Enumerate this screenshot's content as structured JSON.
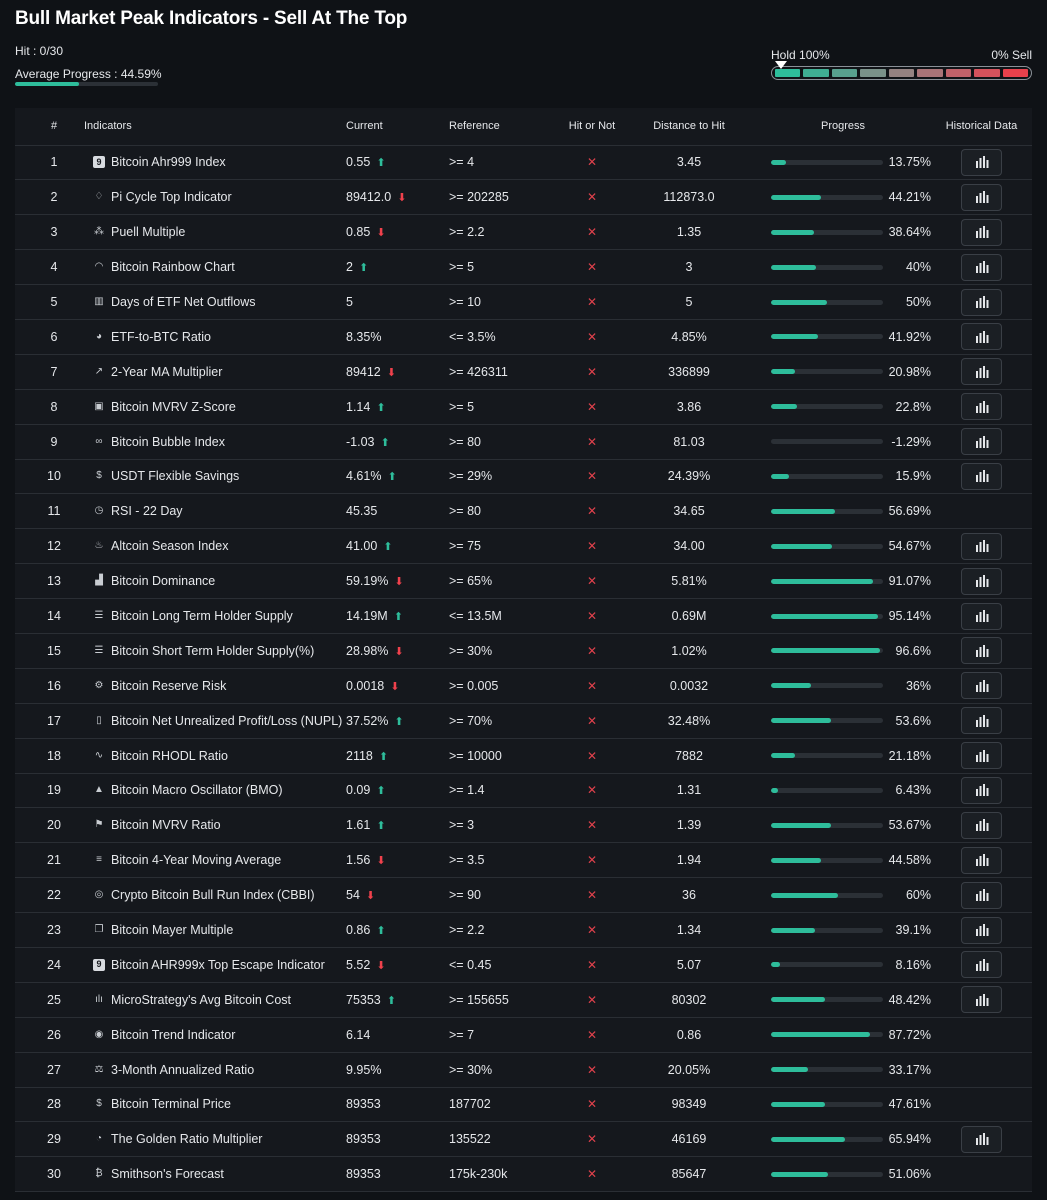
{
  "header": {
    "title": "Bull Market Peak Indicators - Sell At The Top",
    "hit": "Hit : 0/30",
    "average_progress_label": "Average Progress : 44.59%",
    "average_progress": 44.59
  },
  "meter": {
    "hold_label": "Hold 100%",
    "sell_label": "0% Sell",
    "segments": [
      "#2ebd9b",
      "#3fae93",
      "#58a08e",
      "#7a9189",
      "#948281",
      "#a97478",
      "#c0626a",
      "#d4525c",
      "#e8414c"
    ]
  },
  "table": {
    "columns": [
      "#",
      "Indicators",
      "Current",
      "Reference",
      "Hit or Not",
      "Distance to Hit",
      "Progress",
      "Historical Data"
    ],
    "rows": [
      {
        "n": "1",
        "icon": "9",
        "icon_name": "ahr999-icon",
        "name": "Bitcoin Ahr999 Index",
        "current": "0.55",
        "trend": "up",
        "ref": ">= 4",
        "dist": "3.45",
        "pct": "13.75%",
        "p": 13.75,
        "hist": true
      },
      {
        "n": "2",
        "icon": "♢",
        "icon_name": "pi-cycle-icon",
        "name": "Pi Cycle Top Indicator",
        "current": "89412.0",
        "trend": "down",
        "ref": ">= 202285",
        "dist": "112873.0",
        "pct": "44.21%",
        "p": 44.21,
        "hist": true
      },
      {
        "n": "3",
        "icon": "⁂",
        "icon_name": "puell-icon",
        "name": "Puell Multiple",
        "current": "0.85",
        "trend": "down",
        "ref": ">= 2.2",
        "dist": "1.35",
        "pct": "38.64%",
        "p": 38.64,
        "hist": true
      },
      {
        "n": "4",
        "icon": "◠",
        "icon_name": "rainbow-icon",
        "name": "Bitcoin Rainbow Chart",
        "current": "2",
        "trend": "up",
        "ref": ">= 5",
        "dist": "3",
        "pct": "40%",
        "p": 40,
        "hist": true
      },
      {
        "n": "5",
        "icon": "▥",
        "icon_name": "etf-outflow-icon",
        "name": "Days of ETF Net Outflows",
        "current": "5",
        "trend": "",
        "ref": ">= 10",
        "dist": "5",
        "pct": "50%",
        "p": 50,
        "hist": true
      },
      {
        "n": "6",
        "icon": "◕",
        "icon_name": "pie-icon",
        "name": "ETF-to-BTC Ratio",
        "current": "8.35%",
        "trend": "",
        "ref": "<= 3.5%",
        "dist": "4.85%",
        "pct": "41.92%",
        "p": 41.92,
        "hist": true
      },
      {
        "n": "7",
        "icon": "↗",
        "icon_name": "ma-multiplier-icon",
        "name": "2-Year MA Multiplier",
        "current": "89412",
        "trend": "down",
        "ref": ">= 426311",
        "dist": "336899",
        "pct": "20.98%",
        "p": 20.98,
        "hist": true
      },
      {
        "n": "8",
        "icon": "▣",
        "icon_name": "mvrv-zscore-icon",
        "name": "Bitcoin MVRV Z-Score",
        "current": "1.14",
        "trend": "up",
        "ref": ">= 5",
        "dist": "3.86",
        "pct": "22.8%",
        "p": 22.8,
        "hist": true
      },
      {
        "n": "9",
        "icon": "∞",
        "icon_name": "bubble-icon",
        "name": "Bitcoin Bubble Index",
        "current": "-1.03",
        "trend": "up",
        "ref": ">= 80",
        "dist": "81.03",
        "pct": "-1.29%",
        "p": 0,
        "hist": true
      },
      {
        "n": "10",
        "icon": "$",
        "icon_name": "dollar-icon",
        "name": "USDT Flexible Savings",
        "current": "4.61%",
        "trend": "up",
        "ref": ">= 29%",
        "dist": "24.39%",
        "pct": "15.9%",
        "p": 15.9,
        "hist": true
      },
      {
        "n": "11",
        "icon": "◷",
        "icon_name": "clock-icon",
        "name": "RSI - 22 Day",
        "current": "45.35",
        "trend": "",
        "ref": ">= 80",
        "dist": "34.65",
        "pct": "56.69%",
        "p": 56.69,
        "hist": false
      },
      {
        "n": "12",
        "icon": "♨",
        "icon_name": "flame-icon",
        "name": "Altcoin Season Index",
        "current": "41.00",
        "trend": "up",
        "ref": ">= 75",
        "dist": "34.00",
        "pct": "54.67%",
        "p": 54.67,
        "hist": true
      },
      {
        "n": "13",
        "icon": "▟",
        "icon_name": "dominance-icon",
        "name": "Bitcoin Dominance",
        "current": "59.19%",
        "trend": "down",
        "ref": ">= 65%",
        "dist": "5.81%",
        "pct": "91.07%",
        "p": 91.07,
        "hist": true
      },
      {
        "n": "14",
        "icon": "☰",
        "icon_name": "database-icon",
        "name": "Bitcoin Long Term Holder Supply",
        "current": "14.19M",
        "trend": "up",
        "ref": "<= 13.5M",
        "dist": "0.69M",
        "pct": "95.14%",
        "p": 95.14,
        "hist": true
      },
      {
        "n": "15",
        "icon": "☰",
        "icon_name": "database-icon",
        "name": "Bitcoin Short Term Holder Supply(%)",
        "current": "28.98%",
        "trend": "down",
        "ref": ">= 30%",
        "dist": "1.02%",
        "pct": "96.6%",
        "p": 96.6,
        "hist": true
      },
      {
        "n": "16",
        "icon": "⚙",
        "icon_name": "reserve-risk-icon",
        "name": "Bitcoin Reserve Risk",
        "current": "0.0018",
        "trend": "down",
        "ref": ">= 0.005",
        "dist": "0.0032",
        "pct": "36%",
        "p": 36,
        "hist": true
      },
      {
        "n": "17",
        "icon": "▯",
        "icon_name": "nupl-icon",
        "name": "Bitcoin Net Unrealized Profit/Loss (NUPL)",
        "current": "37.52%",
        "trend": "up",
        "ref": ">= 70%",
        "dist": "32.48%",
        "pct": "53.6%",
        "p": 53.6,
        "hist": true
      },
      {
        "n": "18",
        "icon": "∿",
        "icon_name": "pulse-icon",
        "name": "Bitcoin RHODL Ratio",
        "current": "2118",
        "trend": "up",
        "ref": ">= 10000",
        "dist": "7882",
        "pct": "21.18%",
        "p": 21.18,
        "hist": true
      },
      {
        "n": "19",
        "icon": "▲",
        "icon_name": "mountain-icon",
        "name": "Bitcoin Macro Oscillator (BMO)",
        "current": "0.09",
        "trend": "up",
        "ref": ">= 1.4",
        "dist": "1.31",
        "pct": "6.43%",
        "p": 6.43,
        "hist": true
      },
      {
        "n": "20",
        "icon": "⚑",
        "icon_name": "checkered-flag-icon",
        "name": "Bitcoin MVRV Ratio",
        "current": "1.61",
        "trend": "up",
        "ref": ">= 3",
        "dist": "1.39",
        "pct": "53.67%",
        "p": 53.67,
        "hist": true
      },
      {
        "n": "21",
        "icon": "≡",
        "icon_name": "moving-average-icon",
        "name": "Bitcoin 4-Year Moving Average",
        "current": "1.56",
        "trend": "down",
        "ref": ">= 3.5",
        "dist": "1.94",
        "pct": "44.58%",
        "p": 44.58,
        "hist": true
      },
      {
        "n": "22",
        "icon": "◎",
        "icon_name": "cbbi-icon",
        "name": "Crypto Bitcoin Bull Run Index (CBBI)",
        "current": "54",
        "trend": "down",
        "ref": ">= 90",
        "dist": "36",
        "pct": "60%",
        "p": 60,
        "hist": true
      },
      {
        "n": "23",
        "icon": "❐",
        "icon_name": "mayer-icon",
        "name": "Bitcoin Mayer Multiple",
        "current": "0.86",
        "trend": "up",
        "ref": ">= 2.2",
        "dist": "1.34",
        "pct": "39.1%",
        "p": 39.1,
        "hist": true
      },
      {
        "n": "24",
        "icon": "9",
        "icon_name": "ahr999x-icon",
        "name": "Bitcoin AHR999x Top Escape Indicator",
        "current": "5.52",
        "trend": "down",
        "ref": "<= 0.45",
        "dist": "5.07",
        "pct": "8.16%",
        "p": 8.16,
        "hist": true
      },
      {
        "n": "25",
        "icon": "ılı",
        "icon_name": "microstrategy-icon",
        "name": "MicroStrategy's Avg Bitcoin Cost",
        "current": "75353",
        "trend": "up",
        "ref": ">= 155655",
        "dist": "80302",
        "pct": "48.42%",
        "p": 48.42,
        "hist": true
      },
      {
        "n": "26",
        "icon": "◉",
        "icon_name": "trend-icon",
        "name": "Bitcoin Trend Indicator",
        "current": "6.14",
        "trend": "",
        "ref": ">= 7",
        "dist": "0.86",
        "pct": "87.72%",
        "p": 87.72,
        "hist": false
      },
      {
        "n": "27",
        "icon": "⚖",
        "icon_name": "scale-icon",
        "name": "3-Month Annualized Ratio",
        "current": "9.95%",
        "trend": "",
        "ref": ">= 30%",
        "dist": "20.05%",
        "pct": "33.17%",
        "p": 33.17,
        "hist": false
      },
      {
        "n": "28",
        "icon": "$",
        "icon_name": "terminal-price-icon",
        "name": "Bitcoin Terminal Price",
        "current": "89353",
        "trend": "",
        "ref": "187702",
        "dist": "98349",
        "pct": "47.61%",
        "p": 47.61,
        "hist": false
      },
      {
        "n": "29",
        "icon": "◔",
        "icon_name": "golden-ratio-icon",
        "name": "The Golden Ratio Multiplier",
        "current": "89353",
        "trend": "",
        "ref": "135522",
        "dist": "46169",
        "pct": "65.94%",
        "p": 65.94,
        "hist": true
      },
      {
        "n": "30",
        "icon": "₿",
        "icon_name": "bitcoin-icon",
        "name": "Smithson's Forecast",
        "current": "89353",
        "trend": "",
        "ref": "175k-230k",
        "dist": "85647",
        "pct": "51.06%",
        "p": 51.06,
        "hist": false
      }
    ]
  }
}
